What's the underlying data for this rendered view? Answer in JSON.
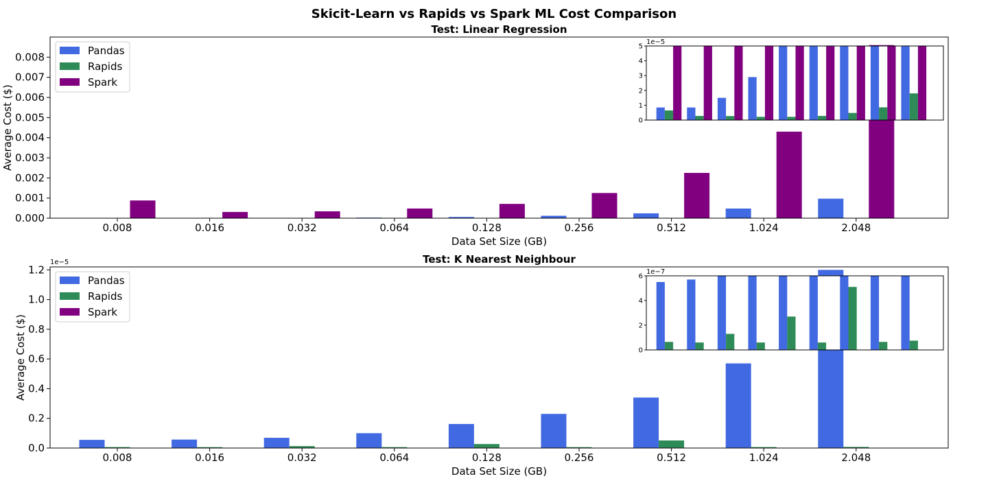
{
  "suptitle": "Skicit-Learn vs Rapids vs Spark ML Cost Comparison",
  "colors": {
    "Pandas": "#4169e1",
    "Rapids": "#2e8b57",
    "Spark": "#800080"
  },
  "chart_data": [
    {
      "type": "bar",
      "title": "Test: Linear Regression",
      "xlabel": "Data Set Size (GB)",
      "ylabel": "Average Cost ($)",
      "categories": [
        "0.008",
        "0.016",
        "0.032",
        "0.064",
        "0.128",
        "0.256",
        "0.512",
        "1.024",
        "2.048"
      ],
      "ylim": [
        0,
        0.009
      ],
      "yticks": [
        "0.000",
        "0.001",
        "0.002",
        "0.003",
        "0.004",
        "0.005",
        "0.006",
        "0.007",
        "0.008"
      ],
      "legend": "upper-left",
      "series": [
        {
          "name": "Pandas",
          "values": [
            8.5e-06,
            8.5e-06,
            1.5e-05,
            2.9e-05,
            6e-05,
            0.00012,
            0.00024,
            0.00048,
            0.00097
          ]
        },
        {
          "name": "Rapids",
          "values": [
            6.5e-06,
            2.8e-06,
            2.7e-06,
            2.2e-06,
            2.2e-06,
            2.8e-06,
            4.8e-06,
            8.6e-06,
            1.8e-05
          ]
        },
        {
          "name": "Spark",
          "values": [
            0.00088,
            0.00031,
            0.00034,
            0.00048,
            0.00071,
            0.00125,
            0.00225,
            0.0043,
            0.0086
          ]
        }
      ],
      "inset": {
        "ylim": [
          0,
          5
        ],
        "yticks": [
          "0",
          "1",
          "2",
          "3",
          "4",
          "5"
        ],
        "offset_text": "1e−5"
      }
    },
    {
      "type": "bar",
      "title": "Test: K Nearest Neighbour",
      "xlabel": "Data Set Size (GB)",
      "ylabel": "Average Cost ($)",
      "categories": [
        "0.008",
        "0.016",
        "0.032",
        "0.064",
        "0.128",
        "0.256",
        "0.512",
        "1.024",
        "2.048"
      ],
      "ylim": [
        0,
        1.22
      ],
      "yticks": [
        "0.0",
        "0.2",
        "0.4",
        "0.6",
        "0.8",
        "1.0",
        "1.2"
      ],
      "offset_text": "1e−5",
      "legend": "upper-left",
      "series": [
        {
          "name": "Pandas",
          "values": [
            0.055,
            0.057,
            0.069,
            0.1,
            0.162,
            0.23,
            0.34,
            0.57,
            1.2
          ]
        },
        {
          "name": "Rapids",
          "values": [
            0.0065,
            0.006,
            0.013,
            0.006,
            0.027,
            0.006,
            0.051,
            0.0065,
            0.0075
          ]
        },
        {
          "name": "Spark",
          "values": [
            0,
            0,
            0,
            0,
            0,
            0,
            0,
            0,
            0
          ]
        }
      ],
      "inset": {
        "ylim": [
          0,
          6
        ],
        "yticks": [
          "0",
          "2",
          "4",
          "6"
        ],
        "offset_text": "1e−7"
      }
    }
  ]
}
